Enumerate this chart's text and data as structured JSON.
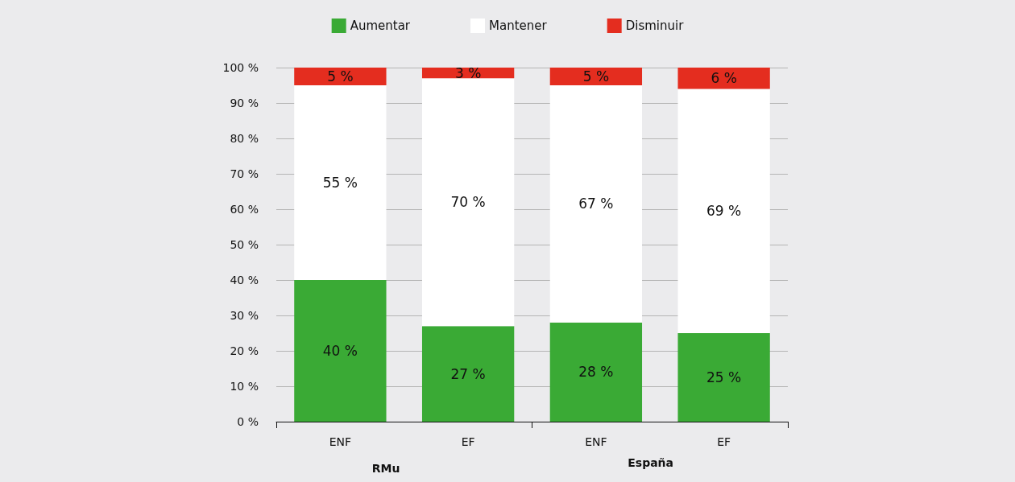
{
  "chart_data": {
    "type": "bar",
    "stacked": true,
    "categories": [
      "ENF",
      "EF",
      "ENF",
      "EF"
    ],
    "series": [
      {
        "name": "Aumentar",
        "color": "#3aaa35",
        "values": [
          40,
          27,
          28,
          25
        ],
        "value_labels": [
          "40 %",
          "27 %",
          "28 %",
          "25 %"
        ]
      },
      {
        "name": "Mantener",
        "color": "#ffffff",
        "values": [
          55,
          70,
          67,
          69
        ],
        "value_labels": [
          "55 %",
          "70 %",
          "67 %",
          "69 %"
        ]
      },
      {
        "name": "Disminuir",
        "color": "#e42d1f",
        "values": [
          5,
          3,
          5,
          6
        ],
        "value_labels": [
          "5 %",
          "3 %",
          "5 %",
          "6 %"
        ]
      }
    ],
    "ylim": [
      0,
      100
    ],
    "yticks": [
      {
        "value": 0,
        "label": "0 %"
      },
      {
        "value": 10,
        "label": "10 %"
      },
      {
        "value": 20,
        "label": "20 %"
      },
      {
        "value": 30,
        "label": "30 %"
      },
      {
        "value": 40,
        "label": "40 %"
      },
      {
        "value": 50,
        "label": "50 %"
      },
      {
        "value": 60,
        "label": "60 %"
      },
      {
        "value": 70,
        "label": "70 %"
      },
      {
        "value": 80,
        "label": "80 %"
      },
      {
        "value": 90,
        "label": "90 %"
      },
      {
        "value": 100,
        "label": "100 %"
      }
    ],
    "annotations": [
      "RMu",
      "España"
    ],
    "grid": "y",
    "legend": "top"
  }
}
